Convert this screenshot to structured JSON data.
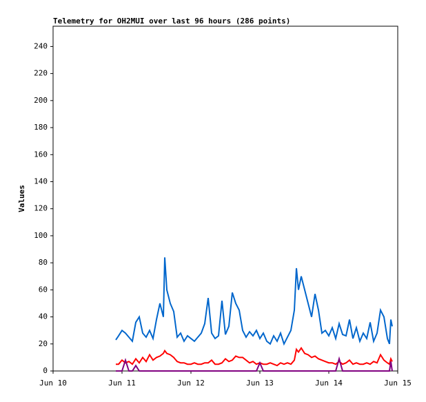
{
  "chart_data": {
    "type": "line",
    "title": "Telemetry for OH2MUI over last 96 hours (286 points)",
    "y_label": "Values",
    "xlim": [
      10,
      15
    ],
    "xticks": [
      {
        "value": 10,
        "label": "Jun 10"
      },
      {
        "value": 11,
        "label": "Jun 11"
      },
      {
        "value": 12,
        "label": "Jun 12"
      },
      {
        "value": 13,
        "label": "Jun 13"
      },
      {
        "value": 14,
        "label": "Jun 14"
      },
      {
        "value": 15,
        "label": "Jun 15"
      }
    ],
    "ylim": [
      0,
      255
    ],
    "yticks": [
      0,
      20,
      40,
      60,
      80,
      100,
      120,
      140,
      160,
      180,
      200,
      220,
      240
    ],
    "x": [
      10.91,
      10.95,
      11.0,
      11.05,
      11.1,
      11.15,
      11.2,
      11.25,
      11.3,
      11.35,
      11.4,
      11.45,
      11.5,
      11.55,
      11.6,
      11.62,
      11.65,
      11.7,
      11.75,
      11.8,
      11.85,
      11.9,
      11.95,
      12.0,
      12.05,
      12.1,
      12.15,
      12.2,
      12.25,
      12.3,
      12.35,
      12.4,
      12.45,
      12.5,
      12.55,
      12.6,
      12.65,
      12.7,
      12.75,
      12.8,
      12.85,
      12.9,
      12.95,
      13.0,
      13.05,
      13.1,
      13.15,
      13.2,
      13.25,
      13.3,
      13.35,
      13.4,
      13.45,
      13.5,
      13.53,
      13.56,
      13.6,
      13.65,
      13.7,
      13.75,
      13.8,
      13.85,
      13.9,
      13.95,
      14.0,
      14.05,
      14.1,
      14.15,
      14.2,
      14.25,
      14.3,
      14.35,
      14.4,
      14.45,
      14.5,
      14.55,
      14.6,
      14.65,
      14.7,
      14.75,
      14.8,
      14.85,
      14.88,
      14.9,
      14.92
    ],
    "series": [
      {
        "color": "#0066cc",
        "values": [
          23,
          26,
          30,
          28,
          25,
          22,
          36,
          40,
          28,
          25,
          30,
          24,
          38,
          50,
          40,
          84,
          60,
          50,
          44,
          25,
          28,
          22,
          26,
          24,
          22,
          25,
          28,
          35,
          54,
          28,
          24,
          26,
          52,
          27,
          33,
          58,
          50,
          45,
          30,
          25,
          29,
          26,
          30,
          24,
          28,
          22,
          20,
          26,
          22,
          28,
          20,
          25,
          30,
          45,
          76,
          60,
          70,
          60,
          50,
          40,
          57,
          45,
          28,
          30,
          26,
          32,
          24,
          35,
          27,
          26,
          38,
          24,
          32,
          22,
          28,
          24,
          36,
          22,
          28,
          45,
          40,
          24,
          20,
          38,
          33
        ]
      },
      {
        "color": "#ff0000",
        "values": [
          5,
          5,
          8,
          6,
          7,
          5,
          9,
          6,
          10,
          7,
          12,
          8,
          10,
          11,
          13,
          15,
          13,
          12,
          10,
          7,
          6,
          6,
          5,
          5,
          6,
          5,
          5,
          6,
          6,
          8,
          5,
          5,
          6,
          9,
          7,
          8,
          11,
          10,
          10,
          8,
          6,
          7,
          5,
          6,
          5,
          5,
          6,
          5,
          4,
          6,
          5,
          6,
          5,
          8,
          16,
          14,
          17,
          13,
          12,
          10,
          11,
          9,
          8,
          7,
          6,
          6,
          5,
          7,
          5,
          6,
          8,
          5,
          6,
          5,
          5,
          6,
          5,
          7,
          6,
          12,
          8,
          6,
          5,
          9,
          7
        ]
      },
      {
        "color": "#800080",
        "values": [
          0,
          0,
          0,
          8,
          0,
          0,
          4,
          0,
          0,
          0,
          0,
          0,
          0,
          0,
          0,
          0,
          0,
          0,
          0,
          0,
          0,
          0,
          0,
          0,
          0,
          0,
          0,
          0,
          0,
          0,
          0,
          0,
          0,
          0,
          0,
          0,
          0,
          0,
          0,
          0,
          0,
          0,
          0,
          6,
          0,
          0,
          0,
          0,
          0,
          0,
          0,
          0,
          0,
          0,
          0,
          0,
          0,
          0,
          0,
          0,
          0,
          0,
          0,
          0,
          0,
          0,
          0,
          9,
          0,
          0,
          0,
          0,
          0,
          0,
          0,
          0,
          0,
          0,
          0,
          0,
          0,
          0,
          0,
          7,
          0
        ]
      }
    ]
  }
}
